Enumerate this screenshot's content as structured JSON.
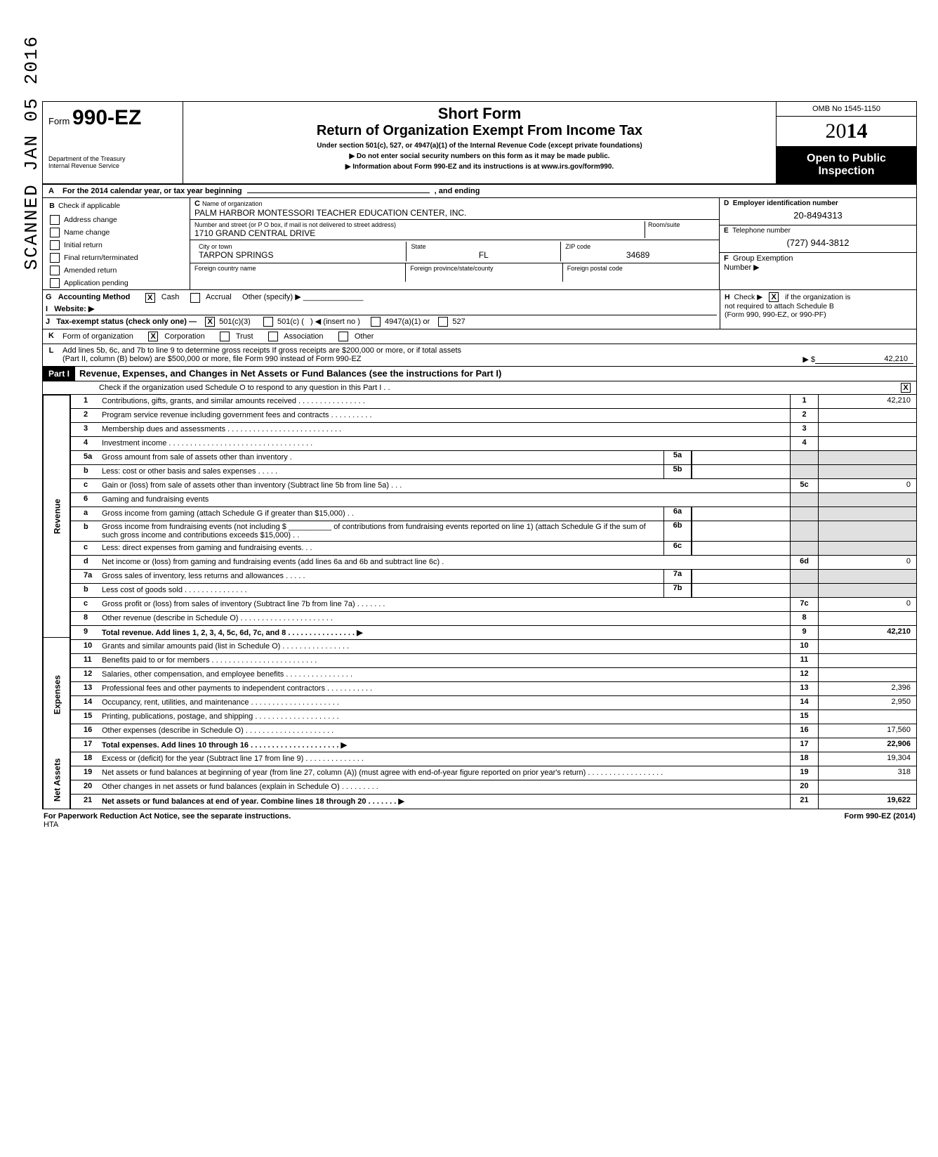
{
  "form": {
    "prefix": "Form",
    "number": "990-EZ",
    "dept1": "Department of the Treasury",
    "dept2": "Internal Revenue Service"
  },
  "header": {
    "title1": "Short Form",
    "title2": "Return of Organization Exempt From Income Tax",
    "sub1": "Under section 501(c), 527, or 4947(a)(1) of the Internal Revenue Code (except private foundations)",
    "sub2": "▶ Do not enter social security numbers on this form as it may be made public.",
    "sub3": "▶ Information about Form 990-EZ and its instructions is at www.irs.gov/form990."
  },
  "right": {
    "omb": "OMB No 1545-1150",
    "year": "2014",
    "open1": "Open to Public",
    "open2": "Inspection"
  },
  "rowA": {
    "letter": "A",
    "text": "For the 2014 calendar year, or tax year beginning",
    "text2": ", and ending"
  },
  "rowB": {
    "letter": "B",
    "label": "Check if applicable",
    "items": [
      "Address change",
      "Name change",
      "Initial return",
      "Final return/terminated",
      "Amended return",
      "Application pending"
    ]
  },
  "colC": {
    "letter": "C",
    "name_label": "Name of organization",
    "name": "PALM HARBOR MONTESSORI TEACHER EDUCATION CENTER, INC.",
    "street_label": "Number and street (or P O  box, if mail is not delivered to street address)",
    "room_label": "Room/suite",
    "street": "1710 GRAND CENTRAL DRIVE",
    "city_label": "City or town",
    "state_label": "State",
    "zip_label": "ZIP code",
    "city": "TARPON SPRINGS",
    "state": "FL",
    "zip": "34689",
    "fc_label": "Foreign country name",
    "fp_label": "Foreign province/state/county",
    "fz_label": "Foreign postal code"
  },
  "colD": {
    "letter": "D",
    "ein_label": "Employer identification number",
    "ein": "20-8494313",
    "letterE": "E",
    "tel_label": "Telephone number",
    "tel": "(727) 944-3812",
    "letterF": "F",
    "grp_label": "Group Exemption",
    "grp2": "Number ▶"
  },
  "rowG": {
    "g": "G",
    "g_label": "Accounting Method",
    "cash": "Cash",
    "accrual": "Accrual",
    "other": "Other (specify) ▶",
    "i": "I",
    "website": "Website: ▶",
    "j": "J",
    "tax_exempt": "Tax-exempt status (check only one) —",
    "s1": "501(c)(3)",
    "s2": "501(c) (",
    "s2b": ") ◀ (insert no )",
    "s3": "4947(a)(1) or",
    "s4": "527",
    "h": "H",
    "h_text1": "Check ▶",
    "h_text2": "if the organization is",
    "h_text3": "not required to attach Schedule B",
    "h_text4": "(Form 990, 990-EZ, or 990-PF)",
    "h_checked": "X"
  },
  "rowK": {
    "k": "K",
    "label": "Form of organization",
    "corp": "Corporation",
    "corp_x": "X",
    "trust": "Trust",
    "assoc": "Association",
    "other": "Other"
  },
  "rowL": {
    "l": "L",
    "text1": "Add lines 5b, 6c, and 7b to line 9 to determine gross receipts  If gross receipts are $200,000 or more, or if total assets",
    "text2": "(Part II, column (B) below) are $500,000 or more, file Form 990 instead of Form 990-EZ",
    "arrow": "▶ $",
    "val": "42,210"
  },
  "part1": {
    "hdr": "Part I",
    "title": "Revenue, Expenses, and Changes in Net Assets or Fund Balances (see the instructions for Part I)",
    "check_text": "Check if the organization used Schedule O to respond to any question in this Part I . .",
    "check_x": "X"
  },
  "side": {
    "revenue": "Revenue",
    "expenses": "Expenses",
    "net": "Net Assets",
    "stamp": "SCANNED JAN 05 2016"
  },
  "lines": [
    {
      "n": "1",
      "d": "Contributions, gifts, grants, and similar amounts received . . . . . . . . . . . . . . . .",
      "box": "1",
      "v": "42,210"
    },
    {
      "n": "2",
      "d": "Program service revenue including government fees and contracts  . . . . . . . . . .",
      "box": "2",
      "v": ""
    },
    {
      "n": "3",
      "d": "Membership dues and assessments . . . . . . . . . . . . . . . . . . . . . . . . . . .",
      "box": "3",
      "v": ""
    },
    {
      "n": "4",
      "d": "Investment income . . . . . . . . . . . . . . . . . . . . . . . . . . . . . . . . . .",
      "box": "4",
      "v": ""
    },
    {
      "n": "5a",
      "d": "Gross amount from sale of assets other than inventory .",
      "mid": "5a"
    },
    {
      "n": "b",
      "d": "Less: cost or other basis and sales expenses . . . . .",
      "mid": "5b"
    },
    {
      "n": "c",
      "d": "Gain or (loss) from sale of assets other than inventory (Subtract line 5b from line 5a) . . .",
      "box": "5c",
      "v": "0"
    },
    {
      "n": "6",
      "d": "Gaming and fundraising events"
    },
    {
      "n": "a",
      "d": "Gross income from gaming (attach Schedule G if greater than $15,000) . .",
      "mid": "6a"
    },
    {
      "n": "b",
      "d": "Gross income from fundraising events (not including   $ __________ of contributions from fundraising events reported on line 1) (attach Schedule G if the sum of such gross income and contributions exceeds $15,000) . .",
      "mid": "6b"
    },
    {
      "n": "c",
      "d": "Less: direct expenses from gaming and fundraising events. . .",
      "mid": "6c"
    },
    {
      "n": "d",
      "d": "Net income or (loss) from gaming and fundraising events (add lines 6a and 6b and subtract line 6c) .",
      "box": "6d",
      "v": "0"
    },
    {
      "n": "7a",
      "d": "Gross sales of inventory, less returns and allowances . . . . .",
      "mid": "7a"
    },
    {
      "n": "b",
      "d": "Less  cost of goods sold . . . . . . . . . . . . . . .",
      "mid": "7b"
    },
    {
      "n": "c",
      "d": "Gross profit or (loss) from sales of inventory (Subtract line 7b from line 7a) . . . . . . .",
      "box": "7c",
      "v": "0"
    },
    {
      "n": "8",
      "d": "Other revenue (describe in Schedule O) . . . . . . . . . . . . . . . . . . . . . .",
      "box": "8",
      "v": ""
    },
    {
      "n": "9",
      "d": "Total revenue. Add lines 1, 2, 3, 4, 5c, 6d, 7c, and 8  . . . . . . . . . . . . . . . . ▶",
      "box": "9",
      "v": "42,210",
      "bold": true
    },
    {
      "n": "10",
      "d": "Grants and similar amounts paid (list in Schedule O) . . . . . . . . . . . . . . . .",
      "box": "10",
      "v": ""
    },
    {
      "n": "11",
      "d": "Benefits paid to or for members . . . . . . . . . . . . . . . . . . . . . . . . .",
      "box": "11",
      "v": ""
    },
    {
      "n": "12",
      "d": "Salaries, other compensation, and employee benefits . . . . . . . . . . . . . . . .",
      "box": "12",
      "v": ""
    },
    {
      "n": "13",
      "d": "Professional fees and other payments to independent contractors . . . . . . . . . . .",
      "box": "13",
      "v": "2,396"
    },
    {
      "n": "14",
      "d": "Occupancy, rent, utilities, and maintenance . . . . . . . . . . . . . . . . . . . . .",
      "box": "14",
      "v": "2,950"
    },
    {
      "n": "15",
      "d": "Printing, publications, postage, and shipping . . . . . . . . . . . . . . . . . . . .",
      "box": "15",
      "v": ""
    },
    {
      "n": "16",
      "d": "Other expenses (describe in Schedule O) . . . . . . . . . . . . . . . . . . . . .",
      "box": "16",
      "v": "17,560"
    },
    {
      "n": "17",
      "d": "Total expenses. Add lines 10 through 16 . . . . . . . . . . . . . . . . . . . . . ▶",
      "box": "17",
      "v": "22,906",
      "bold": true
    },
    {
      "n": "18",
      "d": "Excess or (deficit) for the year (Subtract line 17 from line 9) . . . . . . . . . . . . . .",
      "box": "18",
      "v": "19,304"
    },
    {
      "n": "19",
      "d": "Net assets or fund balances at beginning of year (from line 27, column (A)) (must agree with end-of-year figure reported on prior year's return) . . . . . . . . . . . . . . . . . .",
      "box": "19",
      "v": "318"
    },
    {
      "n": "20",
      "d": "Other changes in net assets or fund balances (explain in Schedule O) . . . . . . . . .",
      "box": "20",
      "v": ""
    },
    {
      "n": "21",
      "d": "Net assets or fund balances at end of year. Combine lines 18 through 20 . . . . . . . ▶",
      "box": "21",
      "v": "19,622",
      "bold": true
    }
  ],
  "footer": {
    "left": "For Paperwork Reduction Act Notice, see the separate instructions.",
    "hta": "HTA",
    "right": "Form 990-EZ (2014)"
  }
}
